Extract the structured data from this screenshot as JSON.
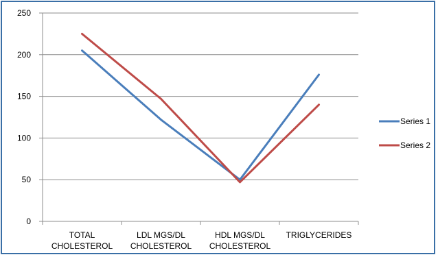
{
  "chart_data": {
    "type": "line",
    "title": "",
    "xlabel": "",
    "ylabel": "",
    "categories": [
      [
        "TOTAL",
        "CHOLESTEROL"
      ],
      [
        "LDL MGS/DL",
        "CHOLESTEROL"
      ],
      [
        "HDL MGS/DL",
        "CHOLESTEROL"
      ],
      [
        "TRIGLYCERIDES"
      ]
    ],
    "ylim": [
      0,
      250
    ],
    "yticks": [
      0,
      50,
      100,
      150,
      200,
      250
    ],
    "grid": true,
    "legend_position": "right",
    "series": [
      {
        "name": "Series 1",
        "color": "#4a7ebb",
        "values": [
          205,
          122,
          50,
          176
        ]
      },
      {
        "name": "Series 2",
        "color": "#be4b48",
        "values": [
          225,
          147,
          47,
          140
        ]
      }
    ]
  }
}
